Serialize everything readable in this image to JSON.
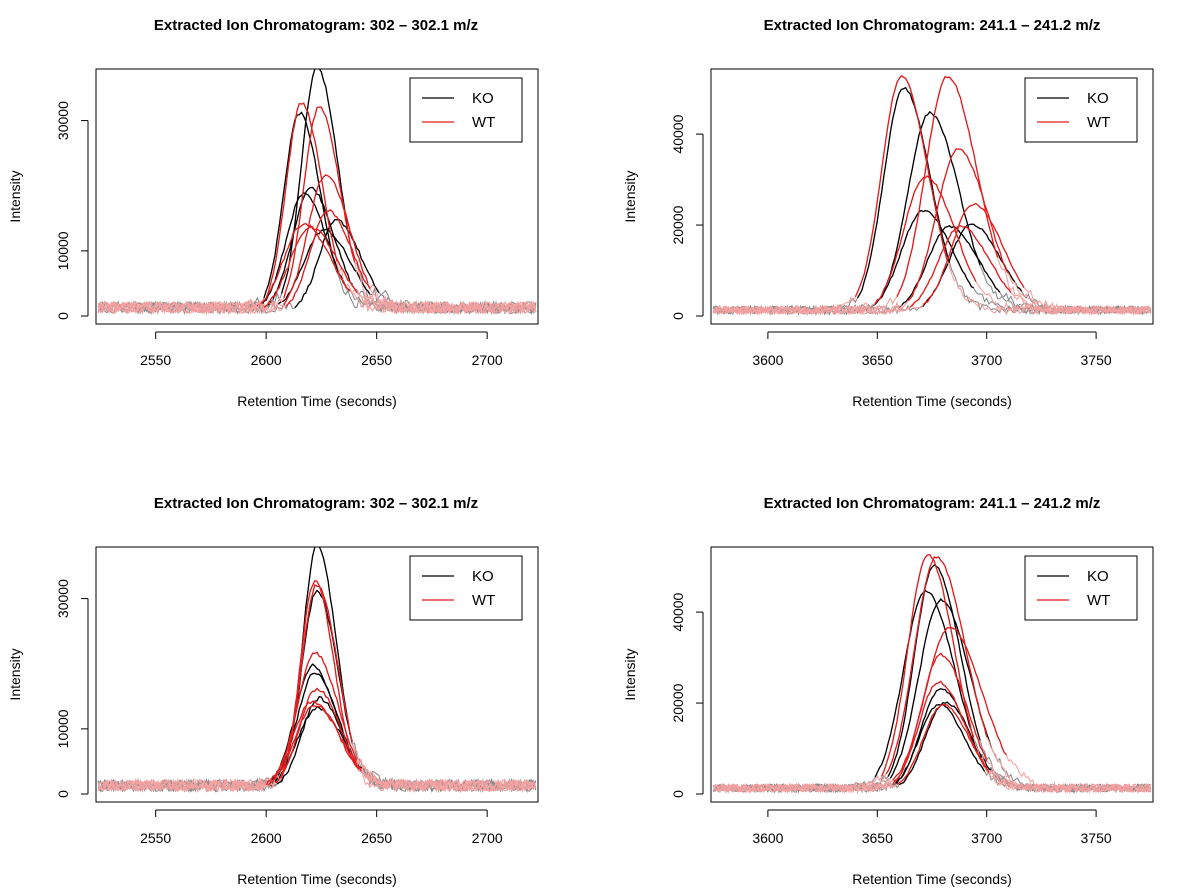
{
  "chart_data": [
    {
      "type": "line",
      "title": "Extracted Ion Chromatogram: 302 – 302.1 m/z",
      "xlabel": "Retention Time (seconds)",
      "ylabel": "Intensity",
      "xlim": [
        2523,
        2723
      ],
      "ylim": [
        0,
        37000
      ],
      "xticks": [
        2550,
        2600,
        2650,
        2700
      ],
      "yticks": [
        0,
        10000,
        30000
      ],
      "legend": {
        "position": "top-right",
        "entries": [
          {
            "name": "KO",
            "color": "#000000"
          },
          {
            "name": "WT",
            "color": "#e31a1c"
          }
        ]
      },
      "series": [
        {
          "name": "KO",
          "color": "#000000",
          "peaks": [
            {
              "apex": 2623,
              "height": 37500,
              "width": 7
            },
            {
              "apex": 2615,
              "height": 30500,
              "width": 7
            },
            {
              "apex": 2620,
              "height": 19000,
              "width": 8
            },
            {
              "apex": 2617,
              "height": 18000,
              "width": 8
            },
            {
              "apex": 2632,
              "height": 14000,
              "width": 8
            },
            {
              "apex": 2626,
              "height": 12500,
              "width": 9
            }
          ]
        },
        {
          "name": "WT",
          "color": "#e31a1c",
          "peaks": [
            {
              "apex": 2616,
              "height": 32000,
              "width": 7
            },
            {
              "apex": 2624,
              "height": 31500,
              "width": 7
            },
            {
              "apex": 2627,
              "height": 21000,
              "width": 8
            },
            {
              "apex": 2628,
              "height": 15500,
              "width": 8
            },
            {
              "apex": 2617,
              "height": 13500,
              "width": 9
            },
            {
              "apex": 2620,
              "height": 13000,
              "width": 9
            }
          ]
        }
      ]
    },
    {
      "type": "line",
      "title": "Extracted Ion Chromatogram: 241.1 – 241.2 m/z",
      "xlabel": "Retention Time (seconds)",
      "ylabel": "Intensity",
      "xlim": [
        3574,
        3776
      ],
      "ylim": [
        0,
        53000
      ],
      "xticks": [
        3600,
        3650,
        3700,
        3750
      ],
      "yticks": [
        0,
        20000,
        40000
      ],
      "legend": {
        "position": "top-right",
        "entries": [
          {
            "name": "KO",
            "color": "#000000"
          },
          {
            "name": "WT",
            "color": "#e31a1c"
          }
        ]
      },
      "series": [
        {
          "name": "KO",
          "color": "#000000",
          "peaks": [
            {
              "apex": 3662,
              "height": 49500,
              "width": 9
            },
            {
              "apex": 3674,
              "height": 44000,
              "width": 10
            },
            {
              "apex": 3671,
              "height": 22500,
              "width": 10
            },
            {
              "apex": 3683,
              "height": 19000,
              "width": 10
            },
            {
              "apex": 3693,
              "height": 19500,
              "width": 10
            }
          ]
        },
        {
          "name": "WT",
          "color": "#e31a1c",
          "peaks": [
            {
              "apex": 3661,
              "height": 52000,
              "width": 9
            },
            {
              "apex": 3682,
              "height": 52000,
              "width": 10
            },
            {
              "apex": 3687,
              "height": 36000,
              "width": 10
            },
            {
              "apex": 3672,
              "height": 30000,
              "width": 10
            },
            {
              "apex": 3694,
              "height": 24000,
              "width": 10
            },
            {
              "apex": 3688,
              "height": 19000,
              "width": 10
            }
          ]
        }
      ]
    },
    {
      "type": "line",
      "title": "Extracted Ion Chromatogram: 302 – 302.1 m/z",
      "xlabel": "Retention Time (seconds)",
      "ylabel": "Intensity",
      "xlim": [
        2523,
        2723
      ],
      "ylim": [
        0,
        37000
      ],
      "xticks": [
        2550,
        2600,
        2650,
        2700
      ],
      "yticks": [
        0,
        10000,
        30000
      ],
      "legend": {
        "position": "top-right",
        "entries": [
          {
            "name": "KO",
            "color": "#000000"
          },
          {
            "name": "WT",
            "color": "#e31a1c"
          }
        ]
      },
      "series": [
        {
          "name": "KO",
          "color": "#000000",
          "peaks": [
            {
              "apex": 2623,
              "height": 37500,
              "width": 6.5
            },
            {
              "apex": 2623,
              "height": 30500,
              "width": 7
            },
            {
              "apex": 2621,
              "height": 19000,
              "width": 8
            },
            {
              "apex": 2622,
              "height": 18000,
              "width": 8
            },
            {
              "apex": 2624,
              "height": 14000,
              "width": 8
            },
            {
              "apex": 2623,
              "height": 12500,
              "width": 9
            }
          ]
        },
        {
          "name": "WT",
          "color": "#e31a1c",
          "peaks": [
            {
              "apex": 2622,
              "height": 32000,
              "width": 6.5
            },
            {
              "apex": 2623,
              "height": 31500,
              "width": 7
            },
            {
              "apex": 2622,
              "height": 21000,
              "width": 8
            },
            {
              "apex": 2623,
              "height": 15500,
              "width": 8
            },
            {
              "apex": 2621,
              "height": 13500,
              "width": 9
            },
            {
              "apex": 2622,
              "height": 13000,
              "width": 9
            }
          ]
        }
      ]
    },
    {
      "type": "line",
      "title": "Extracted Ion Chromatogram: 241.1 – 241.2 m/z",
      "xlabel": "Retention Time (seconds)",
      "ylabel": "Intensity",
      "xlim": [
        3574,
        3776
      ],
      "ylim": [
        0,
        53000
      ],
      "xticks": [
        3600,
        3650,
        3700,
        3750
      ],
      "yticks": [
        0,
        20000,
        40000
      ],
      "legend": {
        "position": "top-right",
        "entries": [
          {
            "name": "KO",
            "color": "#000000"
          },
          {
            "name": "WT",
            "color": "#e31a1c"
          }
        ]
      },
      "series": [
        {
          "name": "KO",
          "color": "#000000",
          "peaks": [
            {
              "apex": 3676,
              "height": 49500,
              "width": 9
            },
            {
              "apex": 3672,
              "height": 44000,
              "width": 10
            },
            {
              "apex": 3679,
              "height": 42000,
              "width": 10
            },
            {
              "apex": 3679,
              "height": 22500,
              "width": 9
            },
            {
              "apex": 3678,
              "height": 19000,
              "width": 9
            },
            {
              "apex": 3681,
              "height": 19500,
              "width": 9
            }
          ]
        },
        {
          "name": "WT",
          "color": "#e31a1c",
          "peaks": [
            {
              "apex": 3673,
              "height": 52000,
              "width": 9
            },
            {
              "apex": 3677,
              "height": 51500,
              "width": 10
            },
            {
              "apex": 3683,
              "height": 36000,
              "width": 11
            },
            {
              "apex": 3679,
              "height": 30000,
              "width": 9
            },
            {
              "apex": 3678,
              "height": 24000,
              "width": 9
            },
            {
              "apex": 3680,
              "height": 19000,
              "width": 9
            }
          ]
        }
      ]
    }
  ]
}
